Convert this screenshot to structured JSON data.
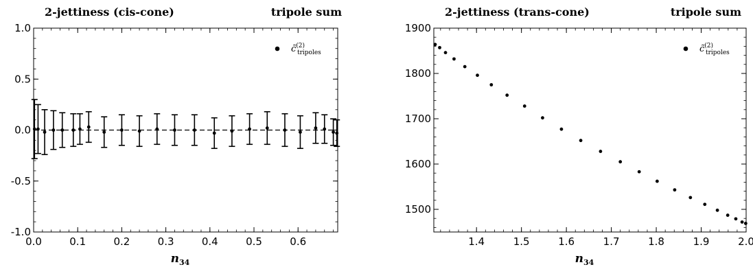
{
  "chart_data": [
    {
      "type": "scatter",
      "title_left": "2-jettiness (cis-cone)",
      "title_right": "tripole sum",
      "xlabel": "n",
      "xlabel_sub": "34",
      "ylabel": "",
      "xlim": [
        0.0,
        0.69
      ],
      "ylim": [
        -1.0,
        1.0
      ],
      "xticks": [
        "0.0",
        "0.1",
        "0.2",
        "0.3",
        "0.4",
        "0.5",
        "0.6"
      ],
      "yticks": [
        "-1.0",
        "-0.5",
        "0.0",
        "0.5",
        "1.0"
      ],
      "reference_line": 0.0,
      "legend": {
        "position": "top-right",
        "label": "c̃",
        "label_sup": "(2)",
        "label_sub": "tripoles"
      },
      "series": [
        {
          "x": [
            0.002,
            0.01,
            0.025,
            0.045,
            0.065,
            0.09,
            0.105,
            0.125,
            0.16,
            0.2,
            0.24,
            0.28,
            0.32,
            0.365,
            0.41,
            0.45,
            0.49,
            0.53,
            0.57,
            0.605,
            0.64,
            0.66,
            0.68,
            0.688
          ],
          "y": [
            0.01,
            0.01,
            -0.02,
            0.0,
            0.0,
            0.0,
            0.01,
            0.03,
            -0.02,
            0.0,
            -0.01,
            0.01,
            0.0,
            0.0,
            -0.03,
            -0.01,
            0.01,
            0.02,
            0.0,
            -0.02,
            0.02,
            0.01,
            -0.02,
            -0.03
          ],
          "err": [
            0.29,
            0.24,
            0.22,
            0.19,
            0.17,
            0.16,
            0.15,
            0.15,
            0.15,
            0.15,
            0.15,
            0.15,
            0.15,
            0.15,
            0.15,
            0.15,
            0.15,
            0.16,
            0.16,
            0.16,
            0.15,
            0.14,
            0.13,
            0.13
          ]
        }
      ]
    },
    {
      "type": "scatter",
      "title_left": "2-jettiness (trans-cone)",
      "title_right": "tripole sum",
      "xlabel": "n",
      "xlabel_sub": "34",
      "ylabel": "",
      "xlim": [
        1.305,
        2.0
      ],
      "ylim": [
        1450,
        1900
      ],
      "xticks": [
        "1.4",
        "1.5",
        "1.6",
        "1.7",
        "1.8",
        "1.9",
        "2.0"
      ],
      "yticks": [
        "1500",
        "1600",
        "1700",
        "1800",
        "1900"
      ],
      "legend": {
        "position": "top-right",
        "label": "c̃",
        "label_sup": "(2)",
        "label_sub": "tripoles"
      },
      "series": [
        {
          "x": [
            1.308,
            1.318,
            1.331,
            1.35,
            1.374,
            1.402,
            1.433,
            1.468,
            1.507,
            1.547,
            1.589,
            1.632,
            1.676,
            1.72,
            1.762,
            1.802,
            1.841,
            1.876,
            1.908,
            1.936,
            1.959,
            1.977,
            1.991,
            1.999
          ],
          "y": [
            1864,
            1857,
            1846,
            1832,
            1815,
            1796,
            1775,
            1752,
            1728,
            1702,
            1677,
            1652,
            1628,
            1605,
            1583,
            1562,
            1543,
            1526,
            1511,
            1498,
            1487,
            1479,
            1472,
            1469
          ]
        }
      ]
    }
  ]
}
